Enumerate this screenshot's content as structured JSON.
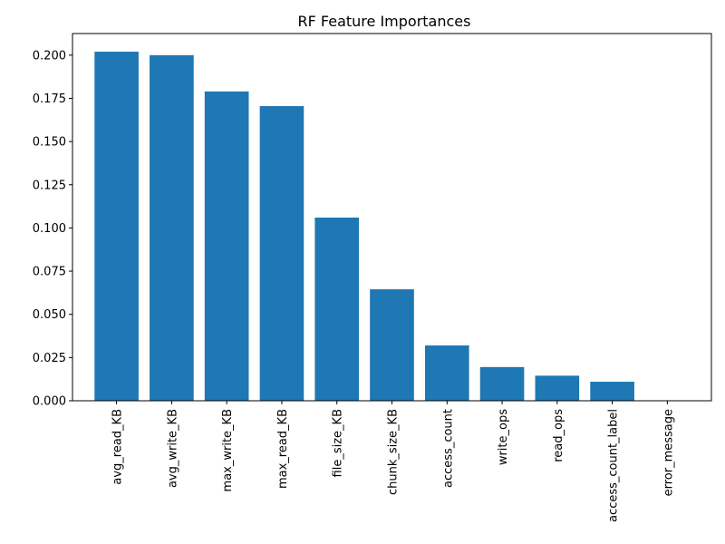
{
  "chart_data": {
    "type": "bar",
    "title": "RF Feature Importances",
    "xlabel": "",
    "ylabel": "",
    "categories": [
      "avg_read_KB",
      "avg_write_KB",
      "max_write_KB",
      "max_read_KB",
      "file_size_KB",
      "chunk_size_KB",
      "access_count",
      "write_ops",
      "read_ops",
      "access_count_label",
      "error_message"
    ],
    "values": [
      0.202,
      0.2,
      0.179,
      0.1705,
      0.106,
      0.0645,
      0.032,
      0.0195,
      0.0145,
      0.011,
      0.0
    ],
    "ylim": [
      0,
      0.2125
    ],
    "yticks": [
      0.0,
      0.025,
      0.05,
      0.075,
      0.1,
      0.125,
      0.15,
      0.175,
      0.2
    ],
    "ytick_labels": [
      "0.000",
      "0.025",
      "0.050",
      "0.075",
      "0.100",
      "0.125",
      "0.150",
      "0.175",
      "0.200"
    ],
    "bar_color": "#1f77b4",
    "grid": false,
    "legend": "none"
  }
}
